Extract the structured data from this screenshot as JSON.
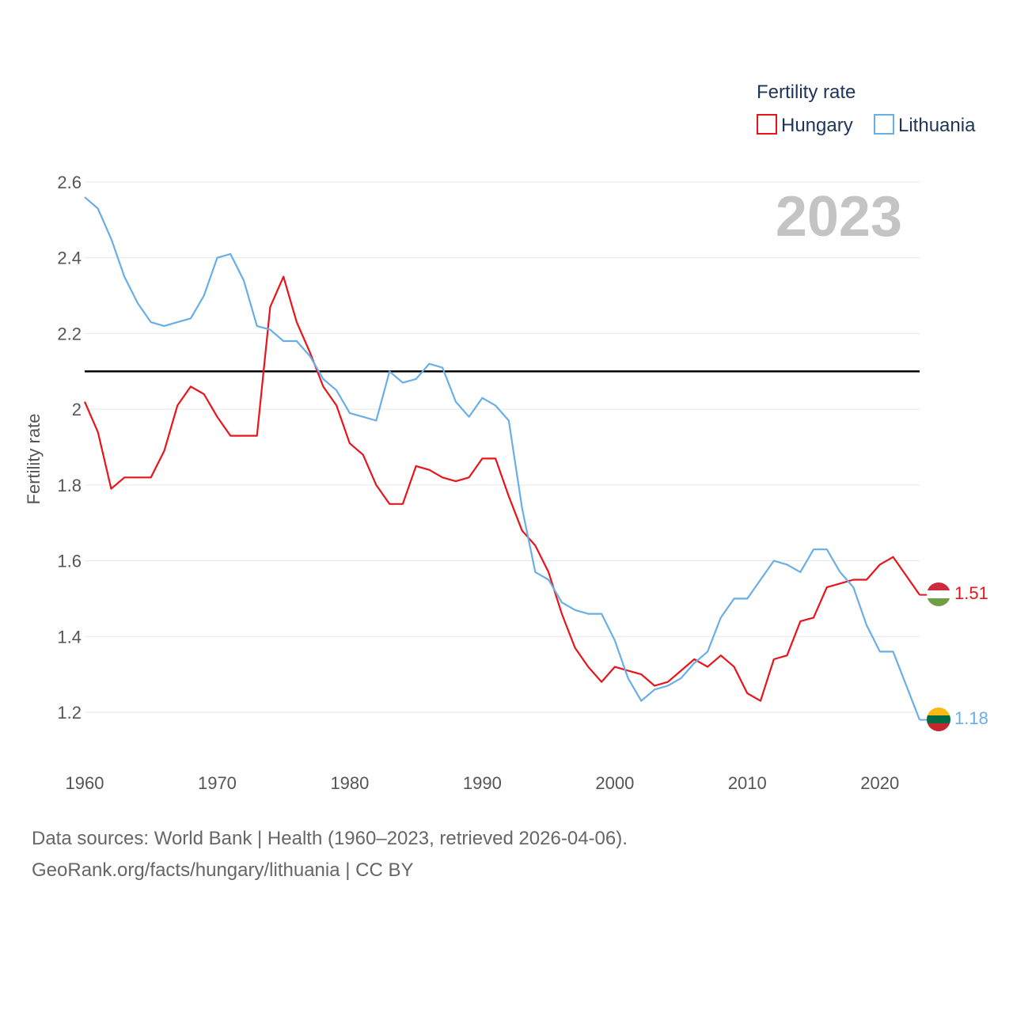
{
  "chart_data": {
    "type": "line",
    "title": "Fertility rate",
    "ylabel": "Fertility rate",
    "xlabel": "",
    "year_display": "2023",
    "xlim": [
      1960,
      2023
    ],
    "ylim": [
      1.1,
      2.62
    ],
    "y_ticks": [
      1.2,
      1.4,
      1.6,
      1.8,
      2,
      2.2,
      2.4,
      2.6
    ],
    "y_tick_labels": [
      "1.2",
      "1.4",
      "1.6",
      "1.8",
      "2",
      "2.2",
      "2.4",
      "2.6"
    ],
    "x_ticks": [
      1960,
      1970,
      1980,
      1990,
      2000,
      2010,
      2020
    ],
    "x_tick_labels": [
      "1960",
      "1970",
      "1980",
      "1990",
      "2000",
      "2010",
      "2020"
    ],
    "reference_line": 2.1,
    "legend_position": "top-right",
    "x": [
      1960,
      1961,
      1962,
      1963,
      1964,
      1965,
      1966,
      1967,
      1968,
      1969,
      1970,
      1971,
      1972,
      1973,
      1974,
      1975,
      1976,
      1977,
      1978,
      1979,
      1980,
      1981,
      1982,
      1983,
      1984,
      1985,
      1986,
      1987,
      1988,
      1989,
      1990,
      1991,
      1992,
      1993,
      1994,
      1995,
      1996,
      1997,
      1998,
      1999,
      2000,
      2001,
      2002,
      2003,
      2004,
      2005,
      2006,
      2007,
      2008,
      2009,
      2010,
      2011,
      2012,
      2013,
      2014,
      2015,
      2016,
      2017,
      2018,
      2019,
      2020,
      2021,
      2022,
      2023
    ],
    "series": [
      {
        "name": "Hungary",
        "color": "#e8141b",
        "end_label": "1.51",
        "values": [
          2.02,
          1.94,
          1.79,
          1.82,
          1.82,
          1.82,
          1.89,
          2.01,
          2.06,
          2.04,
          1.98,
          1.93,
          1.93,
          1.93,
          2.27,
          2.35,
          2.23,
          2.15,
          2.06,
          2.01,
          1.91,
          1.88,
          1.8,
          1.75,
          1.75,
          1.85,
          1.84,
          1.82,
          1.81,
          1.82,
          1.87,
          1.87,
          1.77,
          1.68,
          1.64,
          1.57,
          1.46,
          1.37,
          1.32,
          1.28,
          1.32,
          1.31,
          1.3,
          1.27,
          1.28,
          1.31,
          1.34,
          1.32,
          1.35,
          1.32,
          1.25,
          1.23,
          1.34,
          1.35,
          1.44,
          1.45,
          1.53,
          1.54,
          1.55,
          1.55,
          1.59,
          1.61,
          1.56,
          1.51
        ]
      },
      {
        "name": "Lithuania",
        "color": "#6aaee6",
        "end_label": "1.18",
        "values": [
          2.56,
          2.53,
          2.45,
          2.35,
          2.28,
          2.23,
          2.22,
          2.23,
          2.24,
          2.3,
          2.4,
          2.41,
          2.34,
          2.22,
          2.21,
          2.18,
          2.18,
          2.14,
          2.08,
          2.05,
          1.99,
          1.98,
          1.97,
          2.1,
          2.07,
          2.08,
          2.12,
          2.11,
          2.02,
          1.98,
          2.03,
          2.01,
          1.97,
          1.74,
          1.57,
          1.55,
          1.49,
          1.47,
          1.46,
          1.46,
          1.39,
          1.29,
          1.23,
          1.26,
          1.27,
          1.29,
          1.33,
          1.36,
          1.45,
          1.5,
          1.5,
          1.55,
          1.6,
          1.59,
          1.57,
          1.63,
          1.63,
          1.57,
          1.53,
          1.43,
          1.36,
          1.36,
          1.27,
          1.18
        ]
      }
    ]
  },
  "footer": {
    "line1": "Data sources: World Bank | Health (1960–2023, retrieved 2026-04-06).",
    "line2": "GeoRank.org/facts/hungary/lithuania | CC BY"
  },
  "flags": {
    "hungary": {
      "colors": [
        "#cd2a3e",
        "#ffffff",
        "#6e9f45"
      ]
    },
    "lithuania": {
      "colors": [
        "#fdb913",
        "#006a44",
        "#c1272d"
      ]
    }
  }
}
